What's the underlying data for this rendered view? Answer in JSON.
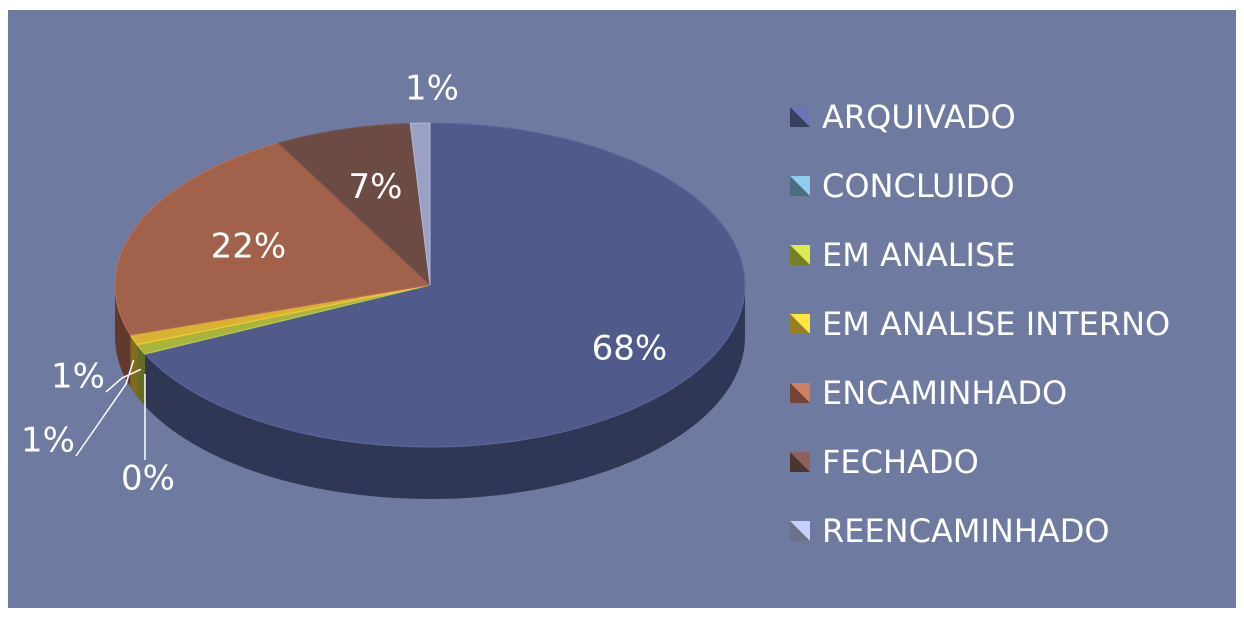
{
  "chart_data": {
    "type": "pie",
    "categories": [
      "ARQUIVADO",
      "CONCLUIDO",
      "EM ANALISE",
      "EM ANALISE INTERNO",
      "ENCAMINHADO",
      "FECHADO",
      "REENCAMINHADO"
    ],
    "values": [
      68,
      0,
      1,
      1,
      22,
      7,
      1
    ],
    "value_labels": [
      "68%",
      "0%",
      "1%",
      "1%",
      "22%",
      "7%",
      "1%"
    ],
    "colors": [
      "#505b8c",
      "#6e9db7",
      "#a9b43c",
      "#d9b231",
      "#a1614b",
      "#6c4b45",
      "#9aa1c2"
    ],
    "legend": "right"
  }
}
